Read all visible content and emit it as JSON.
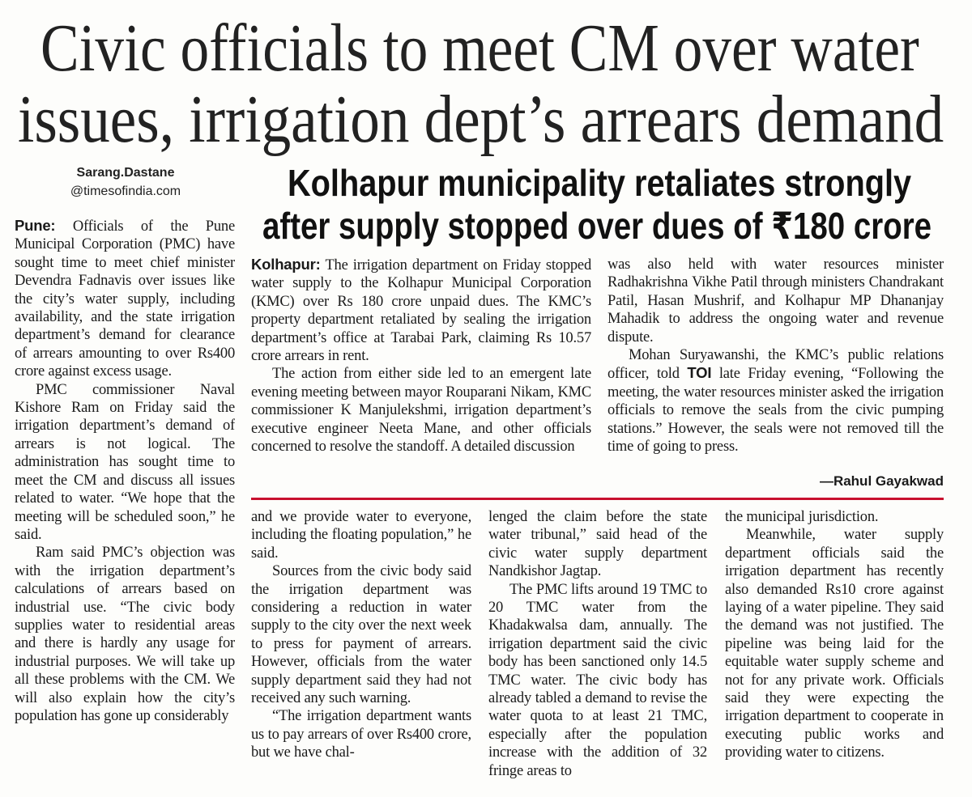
{
  "headline": [
    "Civic officials to meet CM over water",
    "issues, irrigation dept’s arrears demand"
  ],
  "byline": {
    "name": "Sarang.Dastane",
    "handle": "@timesofindia.com"
  },
  "pune_story": {
    "dateline": "Pune:",
    "columns": [
      [
        "Officials of the Pune Municipal Corporation (PMC) have sought time to meet chief minister Devendra Fadnavis over issues like the city’s water supply, including availability, and the state irrigation department’s demand for clearance of arrears amounting to over Rs400 crore against excess usage.",
        "PMC commissioner Naval Kishore Ram on Friday said the irrigation department’s demand of arrears is not logical. The administration has sought time to meet the CM and discuss all issues related to water. “We hope that the meeting will be scheduled soon,” he said.",
        "Ram said PMC’s objection was with the irrigation department’s calculations of arrears based on industrial use. “The civic body supplies water to residential areas and there is hardly any usage for industrial purposes. We will take up all these problems with the CM. We will also explain how the city’s population has gone up considerably"
      ],
      [
        "and we provide water to everyone, including the floating population,” he said.",
        "Sources from the civic body said the irrigation department was considering a reduction in water supply to the city over the next week to press for payment of arrears. However, officials from the water supply department said they had not received any such warning.",
        "“The irrigation department wants us to pay arrears of over Rs400 crore, but we have chal-"
      ],
      [
        "lenged the claim before the state water tribunal,” said head of the civic water supply department Nandkishor Jagtap.",
        "The PMC lifts around 19 TMC to 20 TMC water from the Khadakwalsa dam, annually. The irrigation department said the civic body has been sanctioned only 14.5 TMC water. The civic body has already tabled a demand to revise the water quota to at least 21 TMC, especially after the population increase with the addition of 32 fringe areas to"
      ],
      [
        "the municipal jurisdiction.",
        "Meanwhile, water supply department officials said the irrigation department has recently also demanded Rs10 crore against laying of a water pipeline. They said the demand was not justified. The pipeline was being laid for the equitable water supply scheme and not for any private work. Officials said they were expecting the irrigation department to cooperate in executing public works and providing water to citizens."
      ]
    ]
  },
  "kolhapur_story": {
    "headline": [
      "Kolhapur municipality retaliates strongly",
      "after supply stopped over dues of ₹180 crore"
    ],
    "dateline": "Kolhapur:",
    "columns": [
      [
        "The irrigation department on Friday stopped water supply to the Kolhapur Municipal Corporation (KMC) over Rs 180 crore unpaid dues. The KMC’s property department retaliated by sealing the irrigation department’s office at Tarabai Park, claiming Rs 10.57 crore arrears in rent.",
        "The action from either side led to an emergent late evening meeting between mayor Rouparani Nikam, KMC commissioner K Manjulekshmi, irrigation department’s executive engineer Neeta Mane, and other officials concerned to resolve the standoff. A detailed discussion"
      ],
      [
        "was also held with water resources minister Radhakrishna Vikhe Patil through ministers Chandrakant Patil, Hasan Mushrif, and Kolhapur MP Dhananjay Mahadik to address the ongoing water and revenue dispute.",
        [
          "Mohan Suryawanshi, the KMC’s public relations officer, told ",
          "TOI",
          " late Friday evening, “Following the meeting, the water resources minister asked the irrigation officials to remove the seals from the civic pumping stations.” However, the seals were not removed till the time of going to press."
        ]
      ]
    ],
    "signature": "—Rahul Gayakwad"
  }
}
